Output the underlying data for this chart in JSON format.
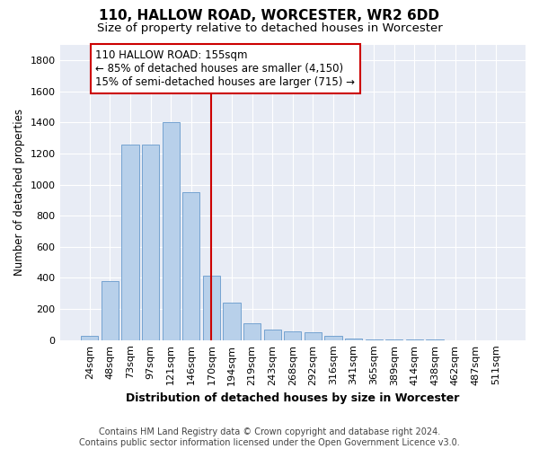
{
  "title": "110, HALLOW ROAD, WORCESTER, WR2 6DD",
  "subtitle": "Size of property relative to detached houses in Worcester",
  "xlabel": "Distribution of detached houses by size in Worcester",
  "ylabel": "Number of detached properties",
  "categories": [
    "24sqm",
    "48sqm",
    "73sqm",
    "97sqm",
    "121sqm",
    "146sqm",
    "170sqm",
    "194sqm",
    "219sqm",
    "243sqm",
    "268sqm",
    "292sqm",
    "316sqm",
    "341sqm",
    "365sqm",
    "389sqm",
    "414sqm",
    "438sqm",
    "462sqm",
    "487sqm",
    "511sqm"
  ],
  "values": [
    25,
    380,
    1260,
    1260,
    1400,
    950,
    415,
    240,
    110,
    70,
    55,
    50,
    25,
    12,
    5,
    3,
    2,
    2,
    1,
    1,
    1
  ],
  "bar_color": "#b8d0ea",
  "bar_edge_color": "#6699cc",
  "bg_color": "#e8ecf5",
  "grid_color": "#ffffff",
  "red_line_x": 6.0,
  "annotation_text": "110 HALLOW ROAD: 155sqm\n← 85% of detached houses are smaller (4,150)\n15% of semi-detached houses are larger (715) →",
  "annotation_box_color": "#ffffff",
  "annotation_box_edge": "#cc0000",
  "ylim": [
    0,
    1900
  ],
  "yticks": [
    0,
    200,
    400,
    600,
    800,
    1000,
    1200,
    1400,
    1600,
    1800
  ],
  "footer": "Contains HM Land Registry data © Crown copyright and database right 2024.\nContains public sector information licensed under the Open Government Licence v3.0.",
  "title_fontsize": 11,
  "subtitle_fontsize": 9.5,
  "xlabel_fontsize": 9,
  "ylabel_fontsize": 8.5,
  "tick_fontsize": 8,
  "footer_fontsize": 7,
  "ann_fontsize": 8.5
}
